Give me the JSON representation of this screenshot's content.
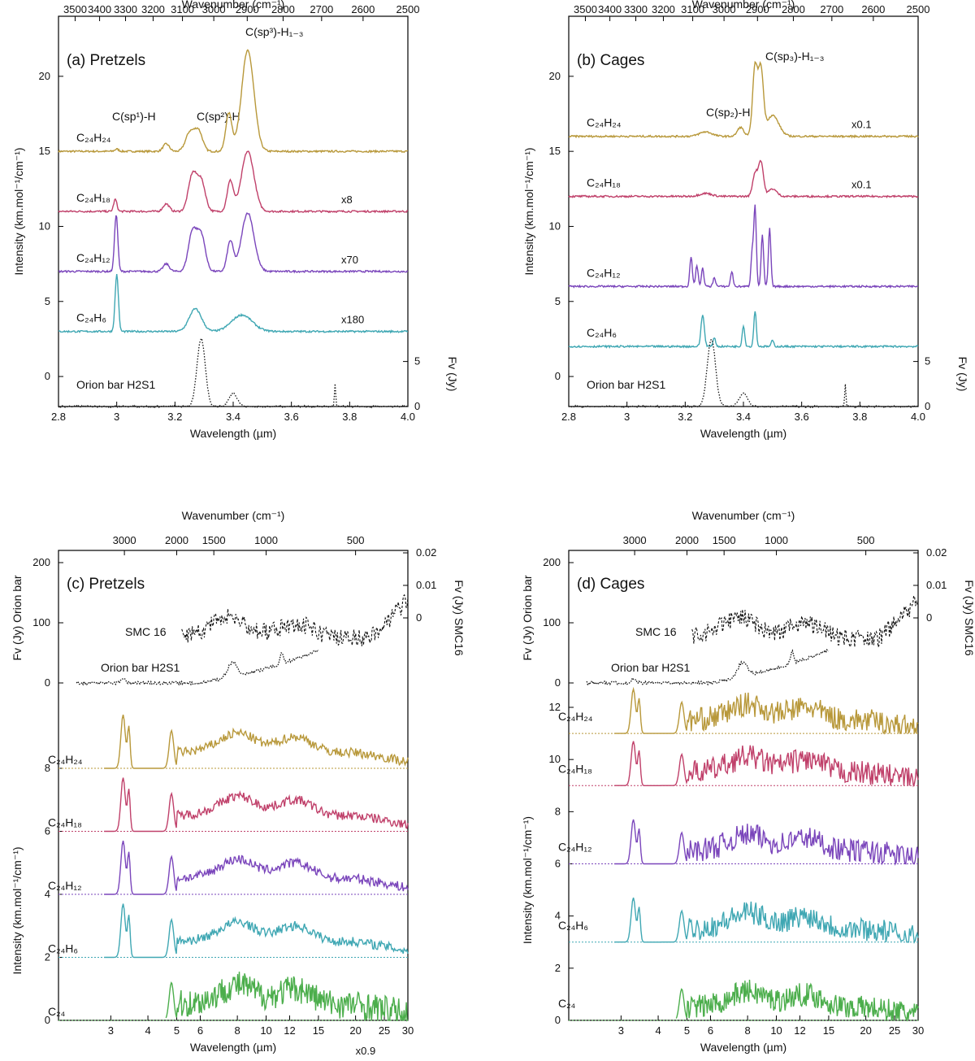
{
  "colors": {
    "gold": "#b8983a",
    "crimson": "#c0406a",
    "purple": "#7a45bb",
    "teal": "#3fa7b3",
    "green": "#4cae4c",
    "black": "#111111"
  },
  "chart_data": [
    {
      "type": "line",
      "panel": "a",
      "title": "(a) Pretzels",
      "xlabel": "Wavelength (µm)",
      "ylabel": "Intensity (km.mol⁻¹/cm⁻¹)",
      "top_axis_label": "Wavenumber (cm⁻¹)",
      "right_axis_label": "Fv (Jy)",
      "xlim": [
        2.8,
        4.0
      ],
      "ylim": [
        -2,
        24
      ],
      "x_ticks": [
        "2.8",
        "3",
        "3.2",
        "3.4",
        "3.6",
        "3.8",
        "4.0"
      ],
      "y_ticks": [
        "0",
        "5",
        "10",
        "15",
        "20"
      ],
      "top_ticks": [
        "3500",
        "3400",
        "3300",
        "3200",
        "3100",
        "3000",
        "2900",
        "2800",
        "2700",
        "2600",
        "2500"
      ],
      "right_ticks": [
        "0",
        "5"
      ],
      "annotations": [
        "C(sp¹)-H",
        "C(sp²)-H",
        "C(sp³)-H₁₋₃"
      ],
      "series": [
        {
          "name": "C₂₄H₂₄",
          "scale": "",
          "color": "gold",
          "offset": 15,
          "peaks": [
            [
              3.0,
              0.15,
              0.01
            ],
            [
              3.17,
              0.5,
              0.015
            ],
            [
              3.25,
              1.2,
              0.02
            ],
            [
              3.28,
              1.4,
              0.02
            ],
            [
              3.385,
              2.5,
              0.015
            ],
            [
              3.45,
              6.7,
              0.03
            ]
          ]
        },
        {
          "name": "C₂₄H₁₈",
          "scale": "x8",
          "color": "crimson",
          "offset": 11,
          "peaks": [
            [
              2.995,
              0.8,
              0.008
            ],
            [
              3.17,
              0.5,
              0.015
            ],
            [
              3.26,
              2.4,
              0.02
            ],
            [
              3.29,
              2.0,
              0.02
            ],
            [
              3.39,
              2.0,
              0.015
            ],
            [
              3.45,
              4.0,
              0.03
            ]
          ]
        },
        {
          "name": "C₂₄H₁₂",
          "scale": "x70",
          "color": "purple",
          "offset": 7,
          "peaks": [
            [
              2.998,
              3.8,
              0.008
            ],
            [
              3.17,
              0.5,
              0.015
            ],
            [
              3.26,
              2.6,
              0.02
            ],
            [
              3.29,
              2.4,
              0.02
            ],
            [
              3.39,
              2.0,
              0.015
            ],
            [
              3.45,
              3.9,
              0.03
            ]
          ]
        },
        {
          "name": "C₂₄H₆",
          "scale": "x180",
          "color": "teal",
          "offset": 3,
          "peaks": [
            [
              3.0,
              3.8,
              0.008
            ],
            [
              3.27,
              1.5,
              0.03
            ],
            [
              3.43,
              1.1,
              0.05
            ]
          ]
        },
        {
          "name": "Orion bar H2S1",
          "scale": "",
          "color": "black",
          "offset": -2,
          "style": "dotted",
          "peaks": [
            [
              3.29,
              4.5,
              0.02
            ],
            [
              3.4,
              0.9,
              0.02
            ],
            [
              3.75,
              1.5,
              0.003
            ]
          ]
        }
      ]
    },
    {
      "type": "line",
      "panel": "b",
      "title": "(b) Cages",
      "xlabel": "Wavelength (µm)",
      "ylabel": "Intensity (km.mol⁻¹/cm⁻¹)",
      "top_axis_label": "Wavenumber (cm⁻¹)",
      "right_axis_label": "Fv (Jy)",
      "xlim": [
        2.8,
        4.0
      ],
      "ylim": [
        -2,
        24
      ],
      "x_ticks": [
        "2.8",
        "3",
        "3.2",
        "3.4",
        "3.6",
        "3.8",
        "4.0"
      ],
      "y_ticks": [
        "0",
        "5",
        "10",
        "15",
        "20"
      ],
      "top_ticks": [
        "3500",
        "3400",
        "3300",
        "3200",
        "3100",
        "3000",
        "2900",
        "2800",
        "2700",
        "2600",
        "2500"
      ],
      "right_ticks": [
        "0",
        "5"
      ],
      "annotations": [
        "C(sp₂)-H",
        "C(sp₃)-H₁₋₃"
      ],
      "series": [
        {
          "name": "C₂₄H₂₄",
          "scale": "x0.1",
          "color": "gold",
          "offset": 16,
          "peaks": [
            [
              3.27,
              0.3,
              0.03
            ],
            [
              3.39,
              0.6,
              0.015
            ],
            [
              3.44,
              4.6,
              0.012
            ],
            [
              3.46,
              4.3,
              0.012
            ],
            [
              3.5,
              1.4,
              0.03
            ]
          ]
        },
        {
          "name": "C₂₄H₁₈",
          "scale": "x0.1",
          "color": "crimson",
          "offset": 12,
          "peaks": [
            [
              3.27,
              0.2,
              0.03
            ],
            [
              3.44,
              1.5,
              0.012
            ],
            [
              3.46,
              2.3,
              0.012
            ],
            [
              3.5,
              0.5,
              0.02
            ]
          ]
        },
        {
          "name": "C₂₄H₁₂",
          "scale": "",
          "color": "purple",
          "offset": 6,
          "peaks": [
            [
              3.22,
              2.0,
              0.006
            ],
            [
              3.24,
              1.4,
              0.006
            ],
            [
              3.26,
              1.2,
              0.006
            ],
            [
              3.3,
              0.6,
              0.006
            ],
            [
              3.36,
              1.0,
              0.006
            ],
            [
              3.43,
              2.3,
              0.006
            ],
            [
              3.44,
              5.3,
              0.006
            ],
            [
              3.465,
              3.4,
              0.006
            ],
            [
              3.49,
              3.9,
              0.006
            ]
          ]
        },
        {
          "name": "C₂₄H₆",
          "scale": "",
          "color": "teal",
          "offset": 2,
          "peaks": [
            [
              3.26,
              2.1,
              0.008
            ],
            [
              3.3,
              0.6,
              0.006
            ],
            [
              3.4,
              1.4,
              0.006
            ],
            [
              3.44,
              2.4,
              0.006
            ],
            [
              3.5,
              0.4,
              0.006
            ]
          ]
        },
        {
          "name": "Orion bar H2S1",
          "scale": "",
          "color": "black",
          "offset": -2,
          "style": "dotted",
          "peaks": [
            [
              3.29,
              4.5,
              0.02
            ],
            [
              3.4,
              0.9,
              0.02
            ],
            [
              3.75,
              1.5,
              0.003
            ]
          ]
        }
      ]
    },
    {
      "type": "line",
      "panel": "c",
      "title": "(c) Pretzels",
      "xlabel": "Wavelength (µm)",
      "ylabel": "Intensity (km.mol⁻¹/cm⁻¹)",
      "left_upper_label": "Fv (Jy) Orion bar",
      "right_axis_label": "Fv (Jy) SMC16",
      "top_axis_label": "Wavenumber (cm⁻¹)",
      "x_scale": "log",
      "xlim": [
        2.0,
        30.0
      ],
      "x_ticks": [
        "3",
        "4",
        "5",
        "6",
        "8",
        "10",
        "12",
        "15",
        "20",
        "25",
        "30"
      ],
      "top_ticks": [
        "3000",
        "2000",
        "1500",
        "1000",
        "500"
      ],
      "y_ticks_lower": [
        "0",
        "2",
        "4",
        "6",
        "8"
      ],
      "y_ticks_upper": [
        "0",
        "100",
        "200"
      ],
      "right_ticks": [
        "0",
        "0.01",
        "0.02"
      ],
      "series": [
        {
          "name": "SMC 16",
          "scale": "",
          "color": "black",
          "style": "dashed"
        },
        {
          "name": "Orion bar H2S1",
          "scale": "",
          "color": "black",
          "style": "dotted"
        },
        {
          "name": "C₂₄H₂₄",
          "scale": "",
          "color": "gold",
          "offset": 8
        },
        {
          "name": "C₂₄H₁₈",
          "scale": "",
          "color": "crimson",
          "offset": 6
        },
        {
          "name": "C₂₄H₁₂",
          "scale": "",
          "color": "purple",
          "offset": 4
        },
        {
          "name": "C₂₄H₆",
          "scale": "",
          "color": "teal",
          "offset": 2
        },
        {
          "name": "C₂₄",
          "scale": "x0.9",
          "color": "green",
          "offset": 0
        }
      ]
    },
    {
      "type": "line",
      "panel": "d",
      "title": "(d) Cages",
      "xlabel": "Wavelength (µm)",
      "ylabel": "Intensity (km.mol⁻¹/cm⁻¹)",
      "left_upper_label": "Fv (Jy) Orion bar",
      "right_axis_label": "Fv (Jy) SMC16",
      "top_axis_label": "Wavenumber (cm⁻¹)",
      "x_scale": "log",
      "xlim": [
        2.0,
        30.0
      ],
      "x_ticks": [
        "3",
        "4",
        "5",
        "6",
        "8",
        "10",
        "12",
        "15",
        "20",
        "25",
        "30"
      ],
      "top_ticks": [
        "3000",
        "2000",
        "1500",
        "1000",
        "500"
      ],
      "y_ticks_lower": [
        "0",
        "2",
        "4",
        "6",
        "8",
        "10",
        "12"
      ],
      "y_ticks_upper": [
        "0",
        "100",
        "200"
      ],
      "right_ticks": [
        "0",
        "0.01",
        "0.02"
      ],
      "series": [
        {
          "name": "SMC 16",
          "scale": "",
          "color": "black",
          "style": "dashed"
        },
        {
          "name": "Orion bar H2S1",
          "scale": "",
          "color": "black",
          "style": "dotted"
        },
        {
          "name": "C₂₄H₂₄",
          "scale": "",
          "color": "gold",
          "offset": 11
        },
        {
          "name": "C₂₄H₁₈",
          "scale": "",
          "color": "crimson",
          "offset": 9
        },
        {
          "name": "C₂₄H₁₂",
          "scale": "",
          "color": "purple",
          "offset": 6
        },
        {
          "name": "C₂₄H₆",
          "scale": "",
          "color": "teal",
          "offset": 3
        },
        {
          "name": "C₂₄",
          "scale": "",
          "color": "green",
          "offset": 0
        }
      ]
    }
  ]
}
